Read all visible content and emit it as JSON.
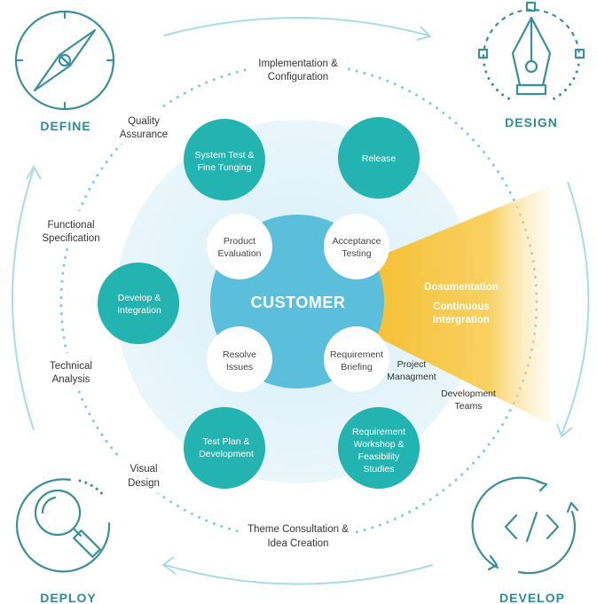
{
  "center": {
    "label": "CUSTOMER"
  },
  "corners": {
    "define": "DEFINE",
    "design": "DESIGN",
    "deploy": "DEPLOY",
    "develop": "DEVELOP"
  },
  "teal_nodes": {
    "system_test": [
      "System Test &",
      "Fine Tunging"
    ],
    "release": [
      "Release"
    ],
    "develop_integration": [
      "Develop &",
      "Integration"
    ],
    "test_plan": [
      "Test Plan &",
      "Development"
    ],
    "requirement_workshop": [
      "Requirement",
      "Workshop &",
      "Feasibility",
      "Studies"
    ]
  },
  "white_nodes": {
    "product_evaluation": [
      "Product",
      "Evaluation"
    ],
    "acceptance_testing": [
      "Acceptance",
      "Testing"
    ],
    "resolve_issues": [
      "Resolve",
      "Issues"
    ],
    "requirement_briefing": [
      "Requirement",
      "Briefing"
    ]
  },
  "beam": {
    "line1": "Dosumentation",
    "line2": [
      "Continuous",
      "Intergration"
    ]
  },
  "ring_labels": {
    "implementation": [
      "Implementation &",
      "Configuration"
    ],
    "quality": [
      "Quality",
      "Assurance"
    ],
    "functional": [
      "Functional",
      "Specification"
    ],
    "technical": [
      "Technical",
      "Analysis"
    ],
    "visual": [
      "Visual",
      "Design"
    ],
    "theme": [
      "Theme Consultation &",
      "Idea Creation"
    ],
    "project": [
      "Project",
      "Managment"
    ],
    "dev_teams": [
      "Development",
      "Teams"
    ]
  },
  "icons": {
    "define": "compass-icon",
    "design": "pen-nib-icon",
    "deploy": "magnifier-icon",
    "develop": "code-icon"
  },
  "colors": {
    "teal": "#23b3b0",
    "blue": "#5bbedb",
    "light_blue_bg": "#e4f4fa",
    "icon_stroke": "#3a8f99",
    "corner_label": "#2f8a93",
    "text": "#333333",
    "beam": "#f6c543"
  }
}
